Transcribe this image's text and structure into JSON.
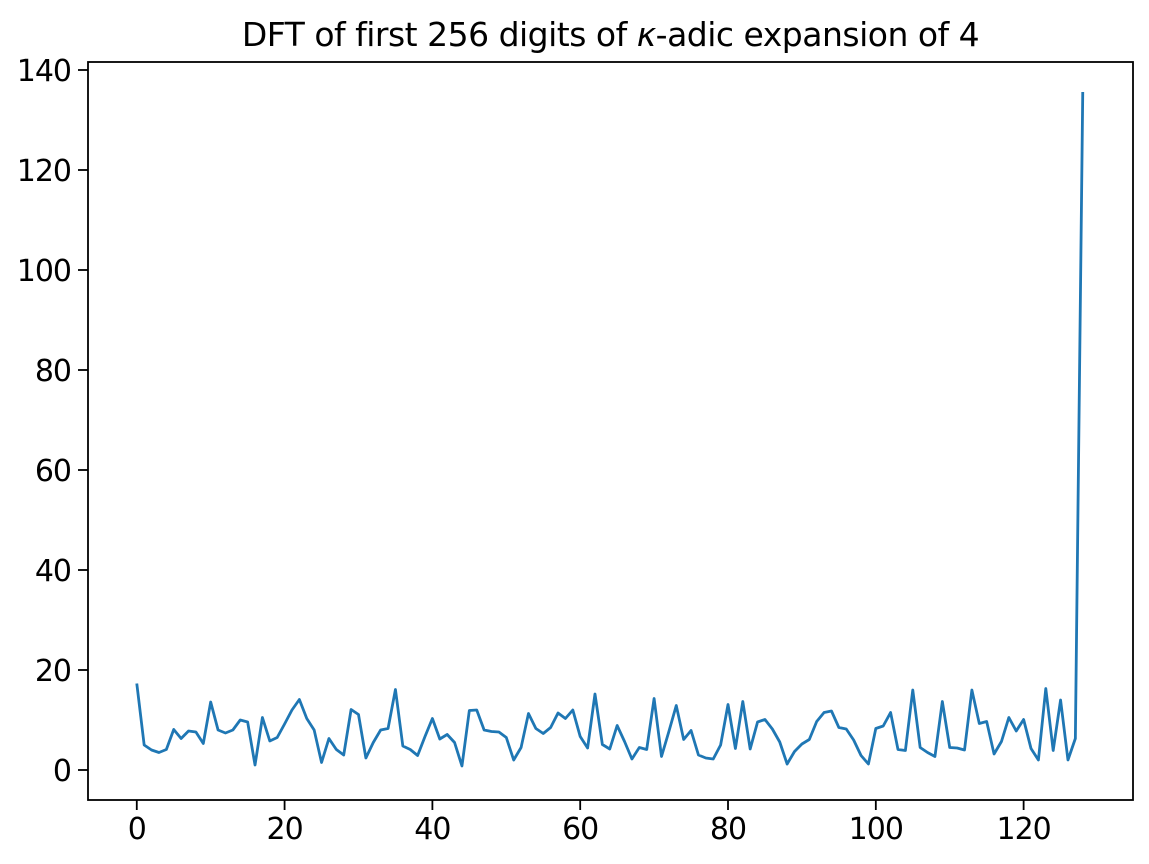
{
  "figure": {
    "title_prefix": "DFT of first 256 digits of ",
    "title_kappa": "κ",
    "title_suffix": "-adic expansion of 4",
    "background": "#ffffff",
    "text_color": "#000000"
  },
  "chart_data": {
    "type": "line",
    "title": "DFT of first 256 digits of κ-adic expansion of 4",
    "xlabel": "",
    "ylabel": "",
    "grid": false,
    "legend_position": "none",
    "line_color": "#1f77b4",
    "line_width": 2.8,
    "x_ticks": [
      0,
      20,
      40,
      60,
      80,
      100,
      120
    ],
    "y_ticks": [
      0,
      20,
      40,
      60,
      80,
      100,
      120,
      140
    ],
    "xlim": [
      -6.6,
      134.8
    ],
    "ylim": [
      -6.0,
      141.6
    ],
    "x_start": 0,
    "x_step": 1,
    "n_points": 129,
    "x_meaning": "DFT frequency index 0..128",
    "values": [
      17.3,
      5.0,
      4.0,
      3.5,
      4.1,
      8.1,
      6.3,
      7.8,
      7.6,
      5.3,
      13.6,
      8.0,
      7.4,
      8.0,
      10.0,
      9.6,
      1.0,
      10.5,
      5.8,
      6.5,
      9.2,
      12.0,
      14.1,
      10.3,
      8.0,
      1.5,
      6.3,
      4.1,
      3.0,
      12.1,
      11.1,
      2.4,
      5.5,
      8.0,
      8.3,
      16.1,
      4.8,
      4.1,
      2.9,
      6.7,
      10.3,
      6.2,
      7.1,
      5.5,
      0.8,
      11.9,
      12.0,
      8.0,
      7.7,
      7.6,
      6.5,
      2.0,
      4.5,
      11.3,
      8.3,
      7.3,
      8.5,
      11.4,
      10.3,
      12.0,
      6.7,
      4.4,
      15.2,
      5.1,
      4.2,
      8.9,
      5.7,
      2.2,
      4.5,
      4.1,
      14.3,
      2.7,
      7.7,
      12.9,
      6.1,
      7.9,
      3.0,
      2.4,
      2.2,
      5.0,
      13.1,
      4.3,
      13.7,
      4.2,
      9.6,
      10.1,
      8.2,
      5.6,
      1.2,
      3.7,
      5.2,
      6.1,
      9.7,
      11.5,
      11.8,
      8.5,
      8.2,
      6.0,
      2.9,
      1.2,
      8.3,
      8.8,
      11.5,
      4.1,
      3.9,
      16.0,
      4.5,
      3.5,
      2.7,
      13.7,
      4.5,
      4.4,
      4.0,
      16.0,
      9.3,
      9.7,
      3.2,
      5.7,
      10.5,
      7.8,
      10.1,
      4.3,
      2.0,
      16.3,
      3.9,
      14.0,
      2.0,
      6.3,
      135.6
    ]
  }
}
